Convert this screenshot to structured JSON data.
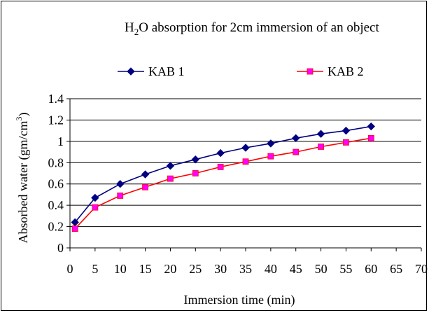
{
  "chart_data": {
    "type": "line",
    "title_main": "H",
    "title_sub": "2",
    "title_rest": "O absorption for 2cm immersion of an object",
    "xlabel": "Immersion time (min)",
    "ylabel_main": "Absorbed water (gm/cm",
    "ylabel_sup": "3",
    "ylabel_close": ")",
    "xlim": [
      0,
      70
    ],
    "ylim": [
      0,
      1.4
    ],
    "x_ticks": [
      0,
      5,
      10,
      15,
      20,
      25,
      30,
      35,
      40,
      45,
      50,
      55,
      60,
      65,
      70
    ],
    "x_tick_labels": [
      "0",
      "5",
      "10",
      "15",
      "20",
      "25",
      "30",
      "35",
      "40",
      "45",
      "50",
      "55",
      "60",
      "65",
      "70"
    ],
    "y_ticks": [
      0,
      0.2,
      0.4,
      0.6,
      0.8,
      1,
      1.2,
      1.4
    ],
    "y_tick_labels": [
      "0",
      "0.2",
      "0.4",
      "0.6",
      "0.8",
      "1",
      "1.2",
      "1.4"
    ],
    "grid": "horizontal",
    "legend_position": "top",
    "x": [
      1,
      5,
      10,
      15,
      20,
      25,
      30,
      35,
      40,
      45,
      50,
      55,
      60
    ],
    "series": [
      {
        "name": "KAB 1",
        "color": "#000080",
        "marker": "diamond",
        "values": [
          0.24,
          0.47,
          0.6,
          0.69,
          0.77,
          0.83,
          0.89,
          0.94,
          0.98,
          1.03,
          1.07,
          1.1,
          1.14
        ]
      },
      {
        "name": "KAB 2",
        "color": "#ff0000",
        "marker_color": "#ff00ff",
        "marker": "square",
        "values": [
          0.18,
          0.38,
          0.49,
          0.57,
          0.65,
          0.7,
          0.76,
          0.81,
          0.86,
          0.9,
          0.95,
          0.99,
          1.03
        ]
      }
    ]
  }
}
